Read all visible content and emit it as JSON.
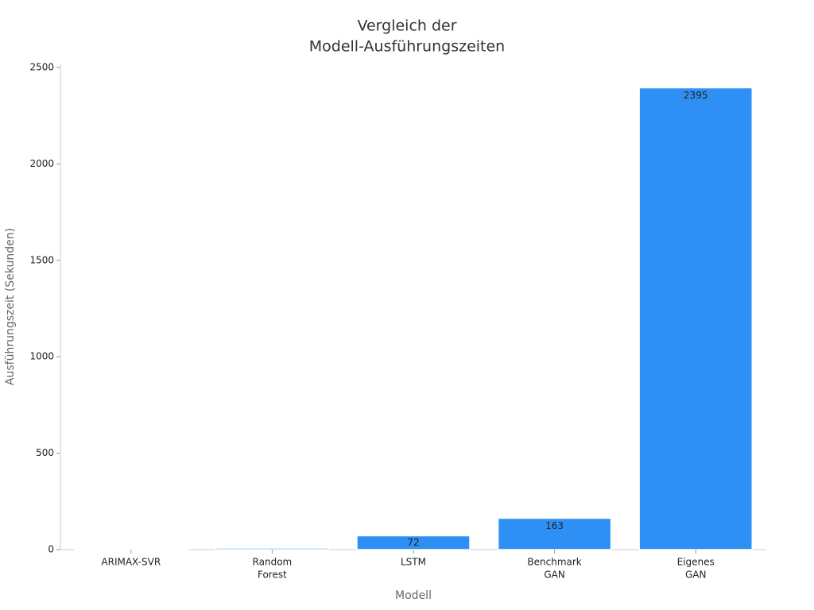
{
  "chart_data": {
    "type": "bar",
    "title": [
      "Vergleich der",
      "Modell-Ausführungszeiten"
    ],
    "x_label": "Modell",
    "y_label": "Ausführungszeit (Sekunden)",
    "categories": [
      [
        "ARIMAX-SVR"
      ],
      [
        "Random",
        "Forest"
      ],
      [
        "LSTM"
      ],
      [
        "Benchmark",
        "GAN"
      ],
      [
        "Eigenes",
        "GAN"
      ]
    ],
    "values": [
      2,
      8,
      72,
      163,
      2395
    ],
    "value_labels": [
      null,
      null,
      "72",
      "163",
      "2395"
    ],
    "color": "#2e90f5",
    "ylim": [
      0,
      2500
    ],
    "yticks": [
      0,
      500,
      1000,
      1500,
      2000,
      2500
    ],
    "grid": false
  }
}
